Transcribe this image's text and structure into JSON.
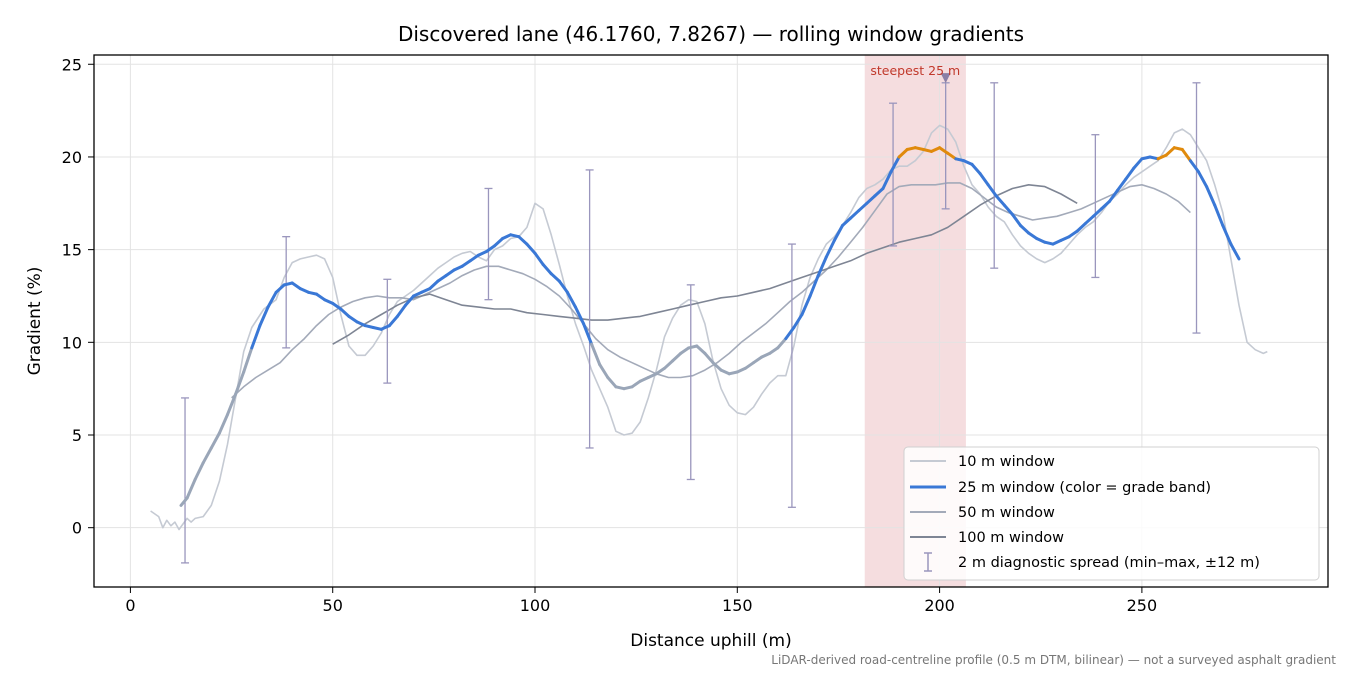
{
  "chart_data": {
    "type": "line",
    "title": "Discovered lane (46.1760, 7.8267) — rolling window gradients",
    "xlabel": "Distance uphill (m)",
    "ylabel": "Gradient (%)",
    "xlim": [
      -9,
      296
    ],
    "ylim": [
      -3.2,
      25.5
    ],
    "xticks": [
      0,
      50,
      100,
      150,
      200,
      250
    ],
    "yticks": [
      0,
      5,
      10,
      15,
      20,
      25
    ],
    "grid": true,
    "legend_position": "lower-right",
    "footnote": "LiDAR-derived road-centreline profile (0.5 m DTM, bilinear) — not a surveyed asphalt gradient",
    "highlight": {
      "x_start": 181.5,
      "x_end": 206.5,
      "label": "steepest 25 m",
      "marker_x": 201.5,
      "marker_y": 24.2
    },
    "colors": {
      "w10": "#c5cad3",
      "w25": "#3a78d6",
      "w25_steep": "#e08a0c",
      "w25_low": "#9aa6b8",
      "w50": "#a3aab9",
      "w100": "#7e8594",
      "errorbar": "#9a96bd",
      "highlight": "#e8b4b8"
    },
    "series": [
      {
        "name": "10 m window",
        "x": [
          5,
          7,
          8,
          9,
          10,
          11,
          12,
          13,
          14,
          15,
          16,
          18,
          20,
          22,
          24,
          26,
          28,
          30,
          33,
          36,
          38,
          40,
          42,
          44,
          46,
          48,
          50,
          52,
          54,
          56,
          58,
          60,
          62,
          64,
          66,
          68,
          70,
          72,
          74,
          76,
          78,
          80,
          82,
          84,
          86,
          88,
          90,
          92,
          94,
          96,
          98,
          100,
          102,
          104,
          106,
          108,
          110,
          112,
          114,
          116,
          118,
          120,
          122,
          124,
          126,
          128,
          130,
          132,
          134,
          136,
          138,
          140,
          142,
          144,
          146,
          148,
          150,
          152,
          154,
          156,
          158,
          160,
          162,
          164,
          166,
          168,
          170,
          172,
          174,
          176,
          178,
          180,
          182,
          184,
          186,
          188,
          190,
          192,
          194,
          196,
          198,
          200,
          202,
          204,
          206,
          208,
          210,
          212,
          214,
          216,
          218,
          220,
          222,
          224,
          226,
          228,
          230,
          232,
          234,
          236,
          238,
          240,
          242,
          244,
          246,
          248,
          250,
          252,
          254,
          256,
          258,
          260,
          262,
          264,
          266,
          268,
          270,
          272,
          274,
          276,
          278,
          280,
          281
        ],
        "y": [
          0.9,
          0.6,
          0,
          0.4,
          0.1,
          0.3,
          -0.1,
          0.2,
          0.5,
          0.3,
          0.5,
          0.6,
          1.2,
          2.5,
          4.5,
          7,
          9.5,
          10.8,
          11.8,
          12.3,
          13.5,
          14.3,
          14.5,
          14.6,
          14.7,
          14.5,
          13.5,
          11.5,
          9.8,
          9.3,
          9.3,
          9.8,
          10.5,
          11.5,
          12.2,
          12.5,
          12.8,
          13.2,
          13.6,
          14,
          14.3,
          14.6,
          14.8,
          14.9,
          14.6,
          14.4,
          15,
          15.2,
          15.6,
          15.7,
          16.2,
          17.5,
          17.2,
          15.8,
          14.2,
          12.5,
          11,
          9.8,
          8.5,
          7.5,
          6.5,
          5.2,
          5,
          5.1,
          5.7,
          7,
          8.5,
          10.3,
          11.3,
          12,
          12.3,
          12.2,
          11,
          9,
          7.5,
          6.6,
          6.2,
          6.1,
          6.5,
          7.2,
          7.8,
          8.2,
          8.2,
          9.8,
          12,
          13.5,
          14.5,
          15.3,
          15.7,
          16.3,
          17,
          17.8,
          18.3,
          18.5,
          18.8,
          19.3,
          19.5,
          19.5,
          19.8,
          20.3,
          21.3,
          21.7,
          21.5,
          20.8,
          19.5,
          18.5,
          18,
          17.3,
          16.8,
          16.5,
          15.8,
          15.2,
          14.8,
          14.5,
          14.3,
          14.5,
          14.8,
          15.3,
          15.8,
          16.2,
          16.5,
          17,
          17.6,
          18,
          18.5,
          18.9,
          19.2,
          19.5,
          19.8,
          20.5,
          21.3,
          21.5,
          21.2,
          20.5,
          19.8,
          18.5,
          17,
          14.5,
          12,
          10,
          9.6,
          9.4,
          9.5
        ]
      },
      {
        "name": "25 m window (color = grade band)",
        "x": [
          12.5,
          14,
          16,
          18,
          20,
          22,
          24,
          26,
          28,
          30,
          32,
          34,
          36,
          38,
          40,
          42,
          44,
          46,
          48,
          50,
          52,
          54,
          56,
          58,
          60,
          62,
          64,
          66,
          68,
          70,
          72,
          74,
          76,
          78,
          80,
          82,
          84,
          86,
          88,
          90,
          92,
          94,
          96,
          98,
          100,
          102,
          104,
          106,
          108,
          110,
          112,
          114,
          116,
          118,
          120,
          122,
          124,
          126,
          128,
          130,
          132,
          134,
          136,
          138,
          140,
          142,
          144,
          146,
          148,
          150,
          152,
          154,
          156,
          158,
          160,
          162,
          164,
          166,
          168,
          170,
          172,
          174,
          176,
          178,
          180,
          182,
          184,
          186,
          188,
          190,
          192,
          194,
          196,
          198,
          200,
          202,
          204,
          206,
          208,
          210,
          212,
          214,
          216,
          218,
          220,
          222,
          224,
          226,
          228,
          230,
          232,
          234,
          236,
          238,
          240,
          242,
          244,
          246,
          248,
          250,
          252,
          254,
          256,
          258,
          260,
          262,
          264,
          266,
          268,
          270,
          272,
          274
        ],
        "y": [
          1.2,
          1.6,
          2.6,
          3.5,
          4.3,
          5.1,
          6.1,
          7.2,
          8.4,
          9.7,
          10.9,
          11.9,
          12.7,
          13.1,
          13.2,
          12.9,
          12.7,
          12.6,
          12.3,
          12.1,
          11.8,
          11.4,
          11.1,
          10.9,
          10.8,
          10.7,
          10.9,
          11.4,
          12,
          12.5,
          12.7,
          12.9,
          13.3,
          13.6,
          13.9,
          14.1,
          14.4,
          14.7,
          14.9,
          15.2,
          15.6,
          15.8,
          15.7,
          15.3,
          14.8,
          14.2,
          13.7,
          13.3,
          12.7,
          11.9,
          11,
          9.9,
          8.8,
          8.1,
          7.6,
          7.5,
          7.6,
          7.9,
          8.1,
          8.3,
          8.6,
          9,
          9.4,
          9.7,
          9.8,
          9.4,
          8.9,
          8.5,
          8.3,
          8.4,
          8.6,
          8.9,
          9.2,
          9.4,
          9.7,
          10.2,
          10.8,
          11.5,
          12.5,
          13.6,
          14.6,
          15.5,
          16.3,
          16.7,
          17.1,
          17.5,
          17.9,
          18.3,
          19.2,
          20,
          20.4,
          20.5,
          20.4,
          20.3,
          20.5,
          20.2,
          19.9,
          19.8,
          19.6,
          19.1,
          18.5,
          17.9,
          17.4,
          16.9,
          16.3,
          15.9,
          15.6,
          15.4,
          15.3,
          15.5,
          15.7,
          16,
          16.4,
          16.8,
          17.2,
          17.6,
          18.2,
          18.8,
          19.4,
          19.9,
          20,
          19.9,
          20.1,
          20.5,
          20.4,
          19.8,
          19.2,
          18.4,
          17.4,
          16.3,
          15.3,
          14.5
        ]
      },
      {
        "name": "50 m window",
        "x": [
          25,
          28,
          31,
          34,
          37,
          40,
          43,
          46,
          49,
          52,
          55,
          58,
          61,
          64,
          67,
          70,
          73,
          76,
          79,
          82,
          85,
          88,
          91,
          94,
          97,
          100,
          103,
          106,
          109,
          112,
          115,
          118,
          121,
          124,
          127,
          130,
          133,
          136,
          139,
          142,
          145,
          148,
          151,
          154,
          157,
          160,
          163,
          166,
          169,
          172,
          175,
          178,
          181,
          184,
          187,
          190,
          193,
          196,
          199,
          202,
          205,
          208,
          211,
          214,
          217,
          220,
          223,
          226,
          229,
          232,
          235,
          238,
          241,
          244,
          247,
          250,
          253,
          256,
          259,
          262
        ],
        "y": [
          7,
          7.6,
          8.1,
          8.5,
          8.9,
          9.6,
          10.2,
          10.9,
          11.5,
          11.9,
          12.2,
          12.4,
          12.5,
          12.4,
          12.4,
          12.3,
          12.6,
          12.9,
          13.2,
          13.6,
          13.9,
          14.1,
          14.1,
          13.9,
          13.7,
          13.4,
          13,
          12.5,
          11.8,
          11,
          10.2,
          9.6,
          9.2,
          8.9,
          8.6,
          8.3,
          8.1,
          8.1,
          8.2,
          8.5,
          8.9,
          9.4,
          10,
          10.5,
          11,
          11.6,
          12.2,
          12.7,
          13.3,
          13.9,
          14.6,
          15.4,
          16.2,
          17.1,
          18,
          18.4,
          18.5,
          18.5,
          18.5,
          18.6,
          18.6,
          18.3,
          17.8,
          17.3,
          17,
          16.8,
          16.6,
          16.7,
          16.8,
          17,
          17.2,
          17.5,
          17.8,
          18.1,
          18.4,
          18.5,
          18.3,
          18,
          17.6,
          17
        ]
      },
      {
        "name": "100 m window",
        "x": [
          50,
          54,
          58,
          62,
          66,
          70,
          74,
          78,
          82,
          86,
          90,
          94,
          98,
          102,
          106,
          110,
          114,
          118,
          122,
          126,
          130,
          134,
          138,
          142,
          146,
          150,
          154,
          158,
          162,
          166,
          170,
          174,
          178,
          182,
          186,
          190,
          194,
          198,
          202,
          206,
          210,
          214,
          218,
          222,
          226,
          230,
          234
        ],
        "y": [
          9.9,
          10.4,
          11,
          11.5,
          12,
          12.4,
          12.6,
          12.3,
          12,
          11.9,
          11.8,
          11.8,
          11.6,
          11.5,
          11.4,
          11.3,
          11.2,
          11.2,
          11.3,
          11.4,
          11.6,
          11.8,
          12,
          12.2,
          12.4,
          12.5,
          12.7,
          12.9,
          13.2,
          13.5,
          13.8,
          14.1,
          14.4,
          14.8,
          15.1,
          15.4,
          15.6,
          15.8,
          16.2,
          16.8,
          17.4,
          17.9,
          18.3,
          18.5,
          18.4,
          18,
          17.5
        ]
      },
      {
        "name": "2 m diagnostic spread (min–max, ±12 m)",
        "x": [
          13.5,
          38.5,
          63.5,
          88.5,
          113.5,
          138.5,
          163.5,
          188.5,
          201.5,
          213.5,
          238.5,
          263.5
        ],
        "y": [
          1.2,
          13.2,
          10.8,
          15.2,
          9.9,
          9.6,
          10.2,
          19.2,
          20.2,
          17.9,
          17.5,
          19.2
        ],
        "ymin": [
          -1.9,
          9.7,
          7.8,
          12.3,
          4.3,
          2.6,
          1.1,
          15.2,
          17.2,
          14,
          13.5,
          10.5
        ],
        "ymax": [
          7,
          15.7,
          13.4,
          18.3,
          19.3,
          13.1,
          15.3,
          22.9,
          24,
          24,
          21.2,
          24
        ]
      }
    ]
  }
}
